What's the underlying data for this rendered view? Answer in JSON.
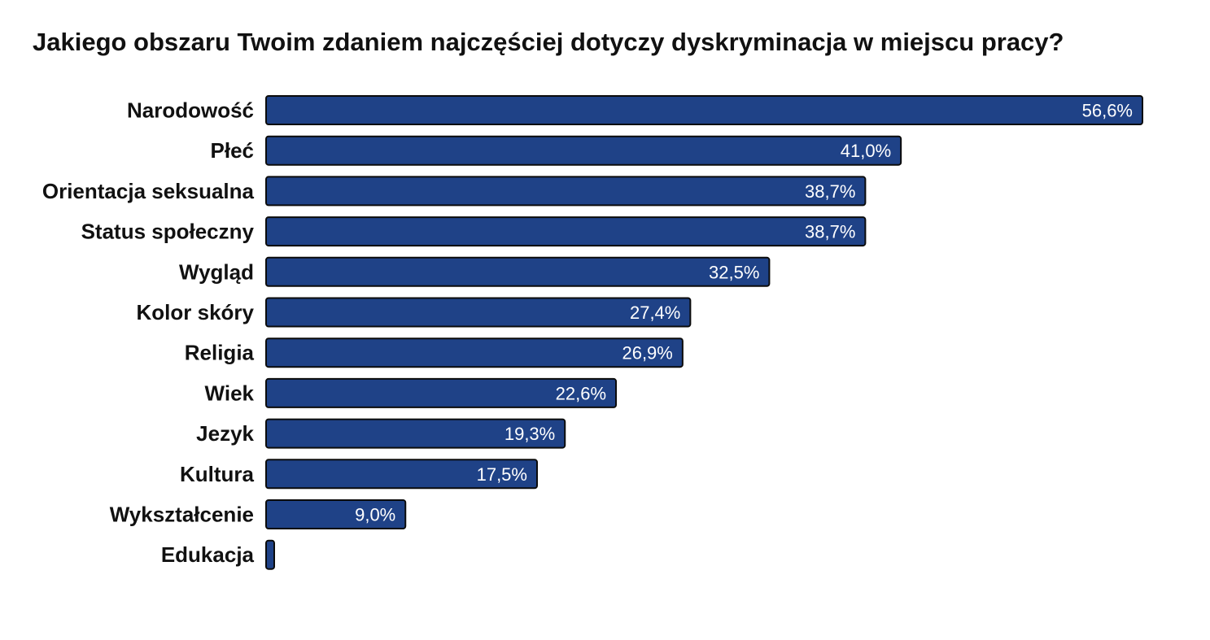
{
  "chart_data": {
    "type": "bar",
    "orientation": "horizontal",
    "title": "Jakiego obszaru Twoim zdaniem najczęściej dotyczy dyskryminacja w miejscu pracy?",
    "xlabel": "",
    "ylabel": "",
    "categories": [
      "Narodowość",
      "Płeć",
      "Orientacja seksualna",
      "Status społeczny",
      "Wygląd",
      "Kolor skóry",
      "Religia",
      "Wiek",
      "Jezyk",
      "Kultura",
      "Wykształcenie",
      "Edukacja"
    ],
    "values": [
      56.6,
      41.0,
      38.7,
      38.7,
      32.5,
      27.4,
      26.9,
      22.6,
      19.3,
      17.5,
      9.0,
      0.5
    ],
    "value_labels": [
      "56,6%",
      "41,0%",
      "38,7%",
      "38,7%",
      "32,5%",
      "27,4%",
      "26,9%",
      "22,6%",
      "19,3%",
      "17,5%",
      "9,0%",
      ""
    ],
    "xlim": [
      0,
      56.6
    ],
    "grid": false,
    "legend": "none",
    "colors": {
      "bar": "#1f4287",
      "bar_outline": "#0b0b0b",
      "label": "#ffffff"
    }
  }
}
